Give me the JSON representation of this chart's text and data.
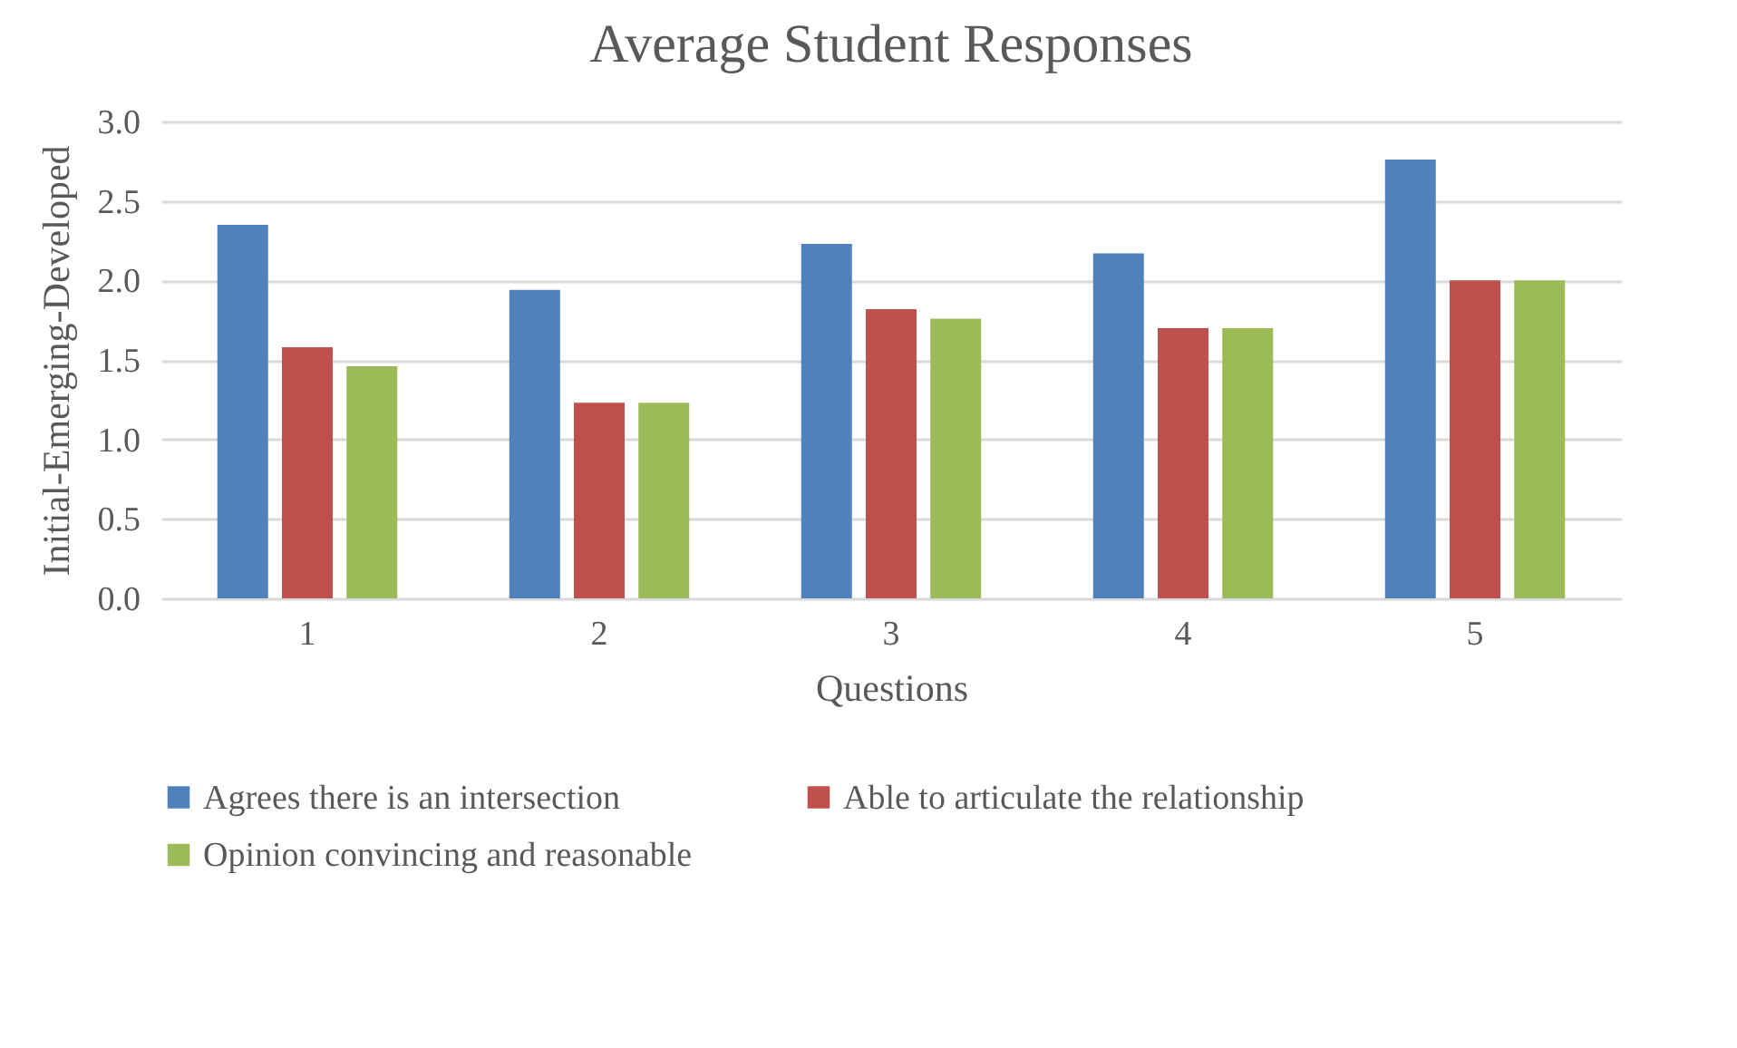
{
  "chart_data": {
    "type": "bar",
    "title": "Average Student Responses",
    "xlabel": "Questions",
    "ylabel": "Initial-Emerging-Developed",
    "categories": [
      "1",
      "2",
      "3",
      "4",
      "5"
    ],
    "series": [
      {
        "name": "Agrees there is an intersection",
        "color": "#4f81bd",
        "values": [
          2.35,
          1.94,
          2.23,
          2.17,
          2.76
        ]
      },
      {
        "name": "Able to articulate the relationship",
        "color": "#c0504d",
        "values": [
          1.58,
          1.23,
          1.82,
          1.7,
          2.0
        ]
      },
      {
        "name": "Opinion convincing and reasonable",
        "color": "#9bbb59",
        "values": [
          1.46,
          1.23,
          1.76,
          1.7,
          2.0
        ]
      }
    ],
    "ylim": [
      0,
      3
    ],
    "yticks": [
      {
        "value": 0,
        "label": "0.0"
      },
      {
        "value": 0.5,
        "label": "0.5"
      },
      {
        "value": 1,
        "label": "1.0"
      },
      {
        "value": 1.5,
        "label": "1.5"
      },
      {
        "value": 2,
        "label": "2.0"
      },
      {
        "value": 2.5,
        "label": "2.5"
      },
      {
        "value": 3,
        "label": "3.0"
      }
    ],
    "grid": "y",
    "legend": "bottom"
  }
}
